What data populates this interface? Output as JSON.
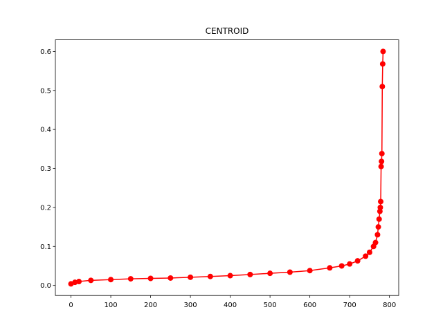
{
  "chart_data": {
    "type": "line",
    "title": "CENTROID",
    "x": [
      0,
      10,
      20,
      50,
      100,
      150,
      200,
      250,
      300,
      350,
      400,
      450,
      500,
      550,
      600,
      650,
      680,
      700,
      720,
      740,
      750,
      760,
      765,
      770,
      772,
      774,
      776,
      777,
      778,
      779,
      780,
      781,
      782,
      783,
      784
    ],
    "series": [
      {
        "color": "#ff0000",
        "values": [
          0.004,
          0.008,
          0.01,
          0.013,
          0.015,
          0.017,
          0.018,
          0.019,
          0.021,
          0.023,
          0.025,
          0.028,
          0.031,
          0.034,
          0.038,
          0.045,
          0.05,
          0.055,
          0.063,
          0.075,
          0.085,
          0.1,
          0.11,
          0.13,
          0.15,
          0.17,
          0.19,
          0.2,
          0.215,
          0.305,
          0.318,
          0.338,
          0.51,
          0.568,
          0.6
        ]
      }
    ],
    "xlim": [
      -39.2,
      823.2
    ],
    "ylim": [
      -0.0258,
      0.6298
    ],
    "xticks": [
      0,
      100,
      200,
      300,
      400,
      500,
      600,
      700,
      800
    ],
    "yticks": [
      {
        "value": 0,
        "label": "0.0"
      },
      0.1,
      0.2,
      0.3,
      0.4,
      0.5,
      0.6
    ],
    "marker": true,
    "grid": false
  }
}
